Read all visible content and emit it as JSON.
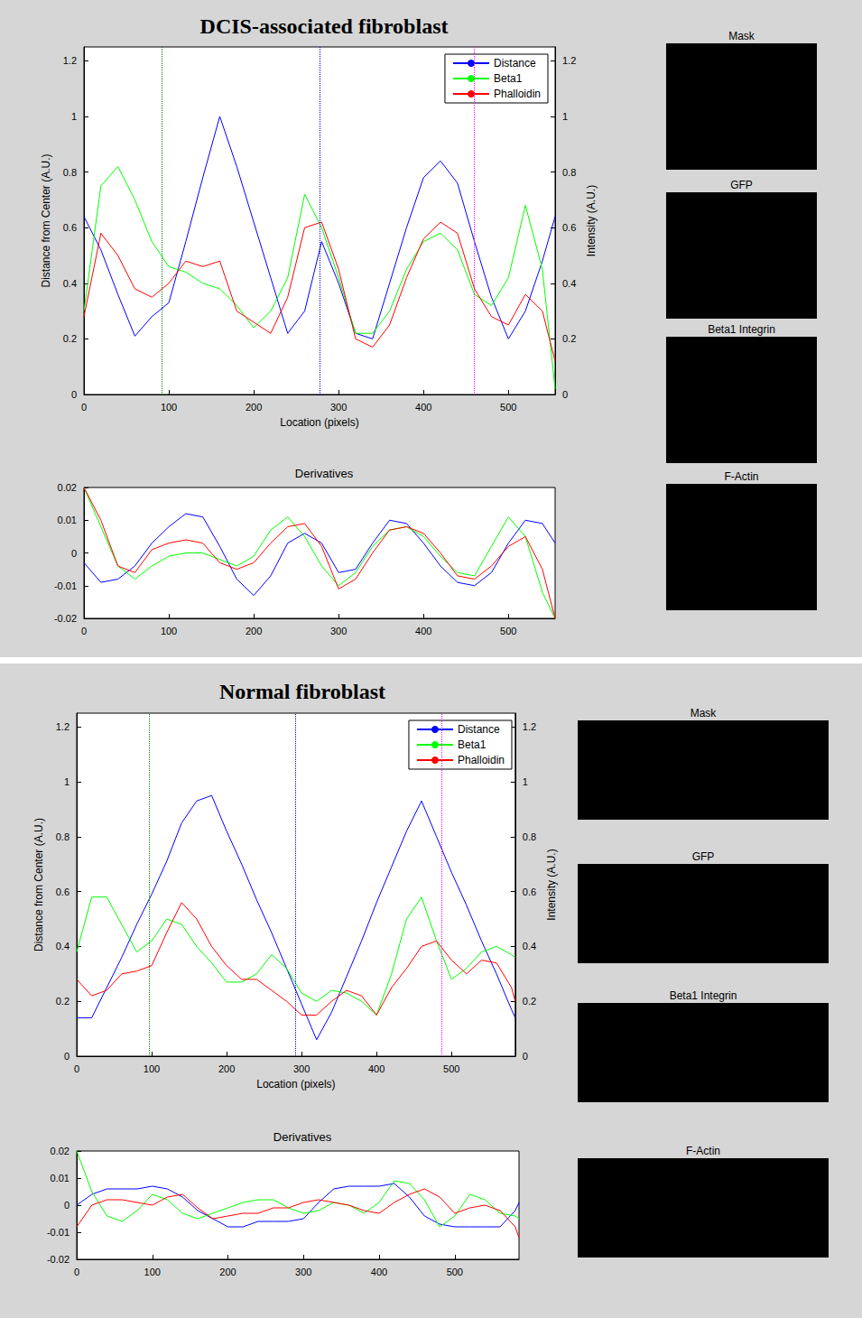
{
  "chart_data": [
    {
      "type": "line",
      "title": "DCIS-associated fibroblast",
      "xlabel": "Location (pixels)",
      "ylabel": "Distance from Center (A.U.)",
      "y2label": "Intensity (A.U.)",
      "x": [
        0,
        20,
        40,
        60,
        80,
        100,
        120,
        140,
        160,
        180,
        200,
        220,
        240,
        260,
        280,
        300,
        320,
        340,
        360,
        380,
        400,
        420,
        440,
        460,
        480,
        500,
        520,
        540,
        555
      ],
      "xlim": [
        0,
        555
      ],
      "xticks": [
        0,
        100,
        200,
        300,
        400,
        500
      ],
      "ylim": [
        0,
        1.25
      ],
      "yticks": [
        0,
        0.2,
        0.4,
        0.6,
        0.8,
        1,
        1.2
      ],
      "y2lim": [
        0,
        1.25
      ],
      "y2ticks": [
        0,
        0.2,
        0.4,
        0.6,
        0.8,
        1,
        1.2
      ],
      "grid": false,
      "legend": "northeast",
      "series": [
        {
          "name": "Distance",
          "color": "#0000ff",
          "values": [
            0.64,
            0.52,
            0.36,
            0.21,
            0.28,
            0.33,
            0.55,
            0.78,
            1.0,
            0.82,
            0.62,
            0.42,
            0.22,
            0.3,
            0.55,
            0.4,
            0.22,
            0.2,
            0.4,
            0.6,
            0.78,
            0.84,
            0.76,
            0.55,
            0.35,
            0.2,
            0.3,
            0.48,
            0.64
          ]
        },
        {
          "name": "Beta1",
          "color": "#00ff00",
          "axis": "y2",
          "values": [
            0.3,
            0.75,
            0.82,
            0.7,
            0.55,
            0.46,
            0.44,
            0.4,
            0.38,
            0.32,
            0.24,
            0.3,
            0.42,
            0.72,
            0.6,
            0.42,
            0.22,
            0.22,
            0.3,
            0.45,
            0.55,
            0.58,
            0.52,
            0.36,
            0.32,
            0.42,
            0.68,
            0.45,
            0.02
          ]
        },
        {
          "name": "Phalloidin",
          "color": "#ff0000",
          "axis": "y2",
          "values": [
            0.28,
            0.58,
            0.5,
            0.38,
            0.35,
            0.4,
            0.48,
            0.46,
            0.48,
            0.3,
            0.26,
            0.22,
            0.35,
            0.6,
            0.62,
            0.45,
            0.2,
            0.17,
            0.25,
            0.42,
            0.56,
            0.62,
            0.58,
            0.38,
            0.28,
            0.25,
            0.36,
            0.3,
            0.12
          ]
        }
      ],
      "vlines": [
        {
          "x": 92,
          "color": "#008000",
          "line_style": "dotted"
        },
        {
          "x": 278,
          "color": "#0000ff",
          "line_style": "dotted"
        },
        {
          "x": 460,
          "color": "#ff00ff",
          "line_style": "dotted"
        }
      ]
    },
    {
      "type": "line",
      "title": "Derivatives",
      "x": [
        0,
        20,
        40,
        60,
        80,
        100,
        120,
        140,
        160,
        180,
        200,
        220,
        240,
        260,
        280,
        300,
        320,
        340,
        360,
        380,
        400,
        420,
        440,
        460,
        480,
        500,
        520,
        540,
        555
      ],
      "xlim": [
        0,
        555
      ],
      "xticks": [
        0,
        100,
        200,
        300,
        400,
        500
      ],
      "ylim": [
        -0.02,
        0.02
      ],
      "yticks": [
        -0.02,
        -0.01,
        0,
        0.01,
        0.02
      ],
      "grid": false,
      "series": [
        {
          "color": "#0000ff",
          "values": [
            -0.003,
            -0.009,
            -0.008,
            -0.004,
            0.003,
            0.008,
            0.012,
            0.011,
            0.002,
            -0.008,
            -0.013,
            -0.007,
            0.003,
            0.006,
            0.003,
            -0.006,
            -0.005,
            0.003,
            0.01,
            0.009,
            0.003,
            -0.004,
            -0.009,
            -0.01,
            -0.006,
            0.003,
            0.01,
            0.009,
            0.003
          ]
        },
        {
          "color": "#00ff00",
          "values": [
            0.02,
            0.008,
            -0.004,
            -0.008,
            -0.004,
            -0.001,
            0,
            0,
            -0.002,
            -0.004,
            -0.001,
            0.007,
            0.011,
            0.005,
            -0.004,
            -0.01,
            -0.006,
            0.002,
            0.007,
            0.008,
            0.005,
            -0.001,
            -0.006,
            -0.007,
            0.002,
            0.011,
            0.005,
            -0.012,
            -0.02
          ]
        },
        {
          "color": "#ff0000",
          "values": [
            0.02,
            0.01,
            -0.004,
            -0.006,
            0.001,
            0.003,
            0.004,
            0.003,
            -0.003,
            -0.005,
            -0.003,
            0.003,
            0.008,
            0.009,
            0.002,
            -0.011,
            -0.008,
            0,
            0.007,
            0.008,
            0.006,
            0,
            -0.007,
            -0.008,
            -0.004,
            0.002,
            0.005,
            -0.005,
            -0.02
          ]
        }
      ]
    },
    {
      "type": "line",
      "title": "Normal fibroblast",
      "xlabel": "Location (pixels)",
      "ylabel": "Distance from Center (A.U.)",
      "y2label": "Intensity (A.U.)",
      "x": [
        0,
        20,
        40,
        60,
        80,
        100,
        120,
        140,
        160,
        180,
        200,
        220,
        240,
        260,
        280,
        300,
        320,
        340,
        360,
        380,
        400,
        420,
        440,
        460,
        480,
        500,
        520,
        540,
        560,
        580,
        585
      ],
      "xlim": [
        0,
        585
      ],
      "xticks": [
        0,
        100,
        200,
        300,
        400,
        500
      ],
      "ylim": [
        0,
        1.25
      ],
      "yticks": [
        0,
        0.2,
        0.4,
        0.6,
        0.8,
        1,
        1.2
      ],
      "y2lim": [
        0,
        1.25
      ],
      "y2ticks": [
        0,
        0.2,
        0.4,
        0.6,
        0.8,
        1,
        1.2
      ],
      "grid": false,
      "legend": "northeast",
      "series": [
        {
          "name": "Distance",
          "color": "#0000ff",
          "values": [
            0.14,
            0.14,
            0.25,
            0.36,
            0.48,
            0.59,
            0.71,
            0.85,
            0.93,
            0.95,
            0.82,
            0.7,
            0.57,
            0.45,
            0.32,
            0.19,
            0.06,
            0.16,
            0.29,
            0.42,
            0.56,
            0.69,
            0.82,
            0.93,
            0.8,
            0.67,
            0.55,
            0.42,
            0.3,
            0.17,
            0.14
          ]
        },
        {
          "name": "Beta1",
          "color": "#00ff00",
          "axis": "y2",
          "values": [
            0.38,
            0.58,
            0.58,
            0.48,
            0.38,
            0.42,
            0.5,
            0.48,
            0.4,
            0.34,
            0.27,
            0.27,
            0.3,
            0.37,
            0.32,
            0.23,
            0.2,
            0.24,
            0.23,
            0.2,
            0.15,
            0.3,
            0.5,
            0.58,
            0.42,
            0.28,
            0.32,
            0.38,
            0.4,
            0.37,
            0.36
          ]
        },
        {
          "name": "Phalloidin",
          "color": "#ff0000",
          "axis": "y2",
          "values": [
            0.28,
            0.22,
            0.24,
            0.3,
            0.31,
            0.33,
            0.45,
            0.56,
            0.5,
            0.4,
            0.33,
            0.28,
            0.28,
            0.24,
            0.2,
            0.15,
            0.15,
            0.2,
            0.24,
            0.22,
            0.15,
            0.25,
            0.32,
            0.4,
            0.42,
            0.35,
            0.3,
            0.35,
            0.34,
            0.25,
            0.2
          ]
        }
      ],
      "vlines": [
        {
          "x": 97,
          "color": "#008000",
          "line_style": "dotted"
        },
        {
          "x": 292,
          "color": "#0000ff",
          "line_style": "dotted"
        },
        {
          "x": 487,
          "color": "#ff00ff",
          "line_style": "dotted"
        }
      ]
    },
    {
      "type": "line",
      "title": "Derivatives",
      "x": [
        0,
        20,
        40,
        60,
        80,
        100,
        120,
        140,
        160,
        180,
        200,
        220,
        240,
        260,
        280,
        300,
        320,
        340,
        360,
        380,
        400,
        420,
        440,
        460,
        480,
        500,
        520,
        540,
        560,
        580,
        585
      ],
      "xlim": [
        0,
        585
      ],
      "xticks": [
        0,
        100,
        200,
        300,
        400,
        500
      ],
      "ylim": [
        -0.02,
        0.02
      ],
      "yticks": [
        -0.02,
        -0.01,
        0,
        0.01,
        0.02
      ],
      "grid": false,
      "series": [
        {
          "color": "#0000ff",
          "values": [
            0,
            0.004,
            0.006,
            0.006,
            0.006,
            0.007,
            0.006,
            0.003,
            -0.002,
            -0.005,
            -0.008,
            -0.008,
            -0.006,
            -0.006,
            -0.006,
            -0.005,
            0.001,
            0.006,
            0.007,
            0.007,
            0.007,
            0.008,
            0.003,
            -0.004,
            -0.007,
            -0.008,
            -0.008,
            -0.008,
            -0.008,
            -0.002,
            0.001
          ]
        },
        {
          "color": "#00ff00",
          "values": [
            0.02,
            0.005,
            -0.004,
            -0.006,
            -0.002,
            0.004,
            0.002,
            -0.003,
            -0.005,
            -0.003,
            -0.001,
            0.001,
            0.002,
            0.002,
            -0.001,
            -0.003,
            -0.002,
            0.001,
            0,
            -0.003,
            0.001,
            0.009,
            0.008,
            0.002,
            -0.008,
            -0.004,
            0.004,
            0.002,
            -0.003,
            -0.004,
            -0.005
          ]
        },
        {
          "color": "#ff0000",
          "values": [
            -0.008,
            0,
            0.002,
            0.002,
            0.001,
            0,
            0.003,
            0.004,
            -0.001,
            -0.005,
            -0.004,
            -0.003,
            -0.003,
            -0.001,
            -0.001,
            0.001,
            0.002,
            0.001,
            0,
            -0.002,
            -0.003,
            0.001,
            0.004,
            0.006,
            0.003,
            -0.003,
            -0.001,
            0,
            -0.002,
            -0.008,
            -0.012
          ]
        }
      ]
    }
  ],
  "images": [
    [
      "Mask",
      "GFP",
      "Beta1 Integrin",
      "F-Actin"
    ],
    [
      "Mask",
      "GFP",
      "Beta1 Integrin",
      "F-Actin"
    ]
  ]
}
